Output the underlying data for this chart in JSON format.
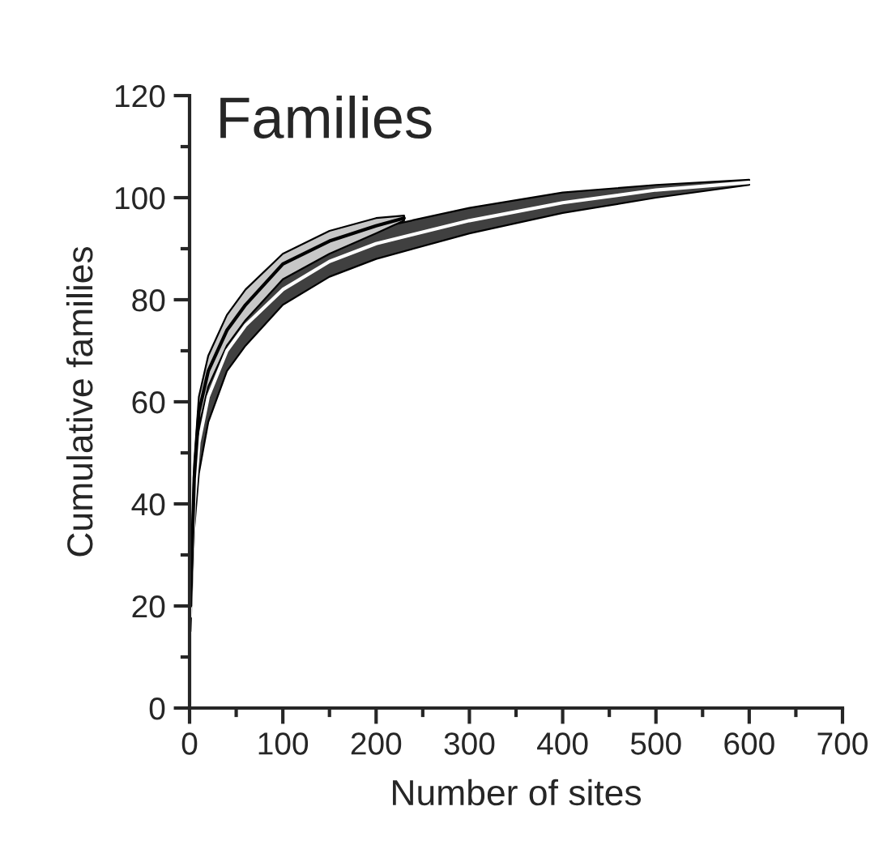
{
  "chart_data": {
    "type": "line",
    "title": "Families",
    "xlabel": "Number of sites",
    "ylabel": "Cumulative families",
    "xlim": [
      0,
      700
    ],
    "xticks": [
      0,
      100,
      200,
      300,
      400,
      500,
      600,
      700
    ],
    "ylim": [
      0,
      120
    ],
    "yticks": [
      0,
      20,
      40,
      60,
      80,
      100,
      120
    ],
    "grid": false,
    "series": [
      {
        "color": "#ffffff",
        "x": [
          1,
          5,
          10,
          20,
          40,
          60,
          100,
          150,
          200,
          300,
          400,
          500,
          600
        ],
        "values": [
          18,
          40,
          52,
          61,
          70,
          75,
          82,
          87.5,
          91,
          95.5,
          99,
          101.5,
          103
        ],
        "lower": [
          15,
          35,
          46,
          56,
          66,
          71,
          79,
          84.5,
          88,
          93,
          97,
          100,
          102.5
        ],
        "upper": [
          20,
          43,
          56,
          65,
          74,
          79,
          86,
          91,
          94,
          98,
          101,
          102.5,
          103.5
        ]
      },
      {
        "color": "#000000",
        "x": [
          1,
          5,
          10,
          20,
          40,
          60,
          100,
          150,
          200,
          230
        ],
        "values": [
          20,
          45,
          58,
          66,
          74,
          79,
          87,
          91.5,
          94.5,
          96
        ],
        "lower": [
          18,
          42,
          55,
          63,
          71,
          76,
          84,
          89,
          93,
          95.5
        ],
        "upper": [
          22,
          48,
          61,
          69,
          77,
          82,
          89,
          93.5,
          96,
          96.5
        ]
      }
    ]
  }
}
